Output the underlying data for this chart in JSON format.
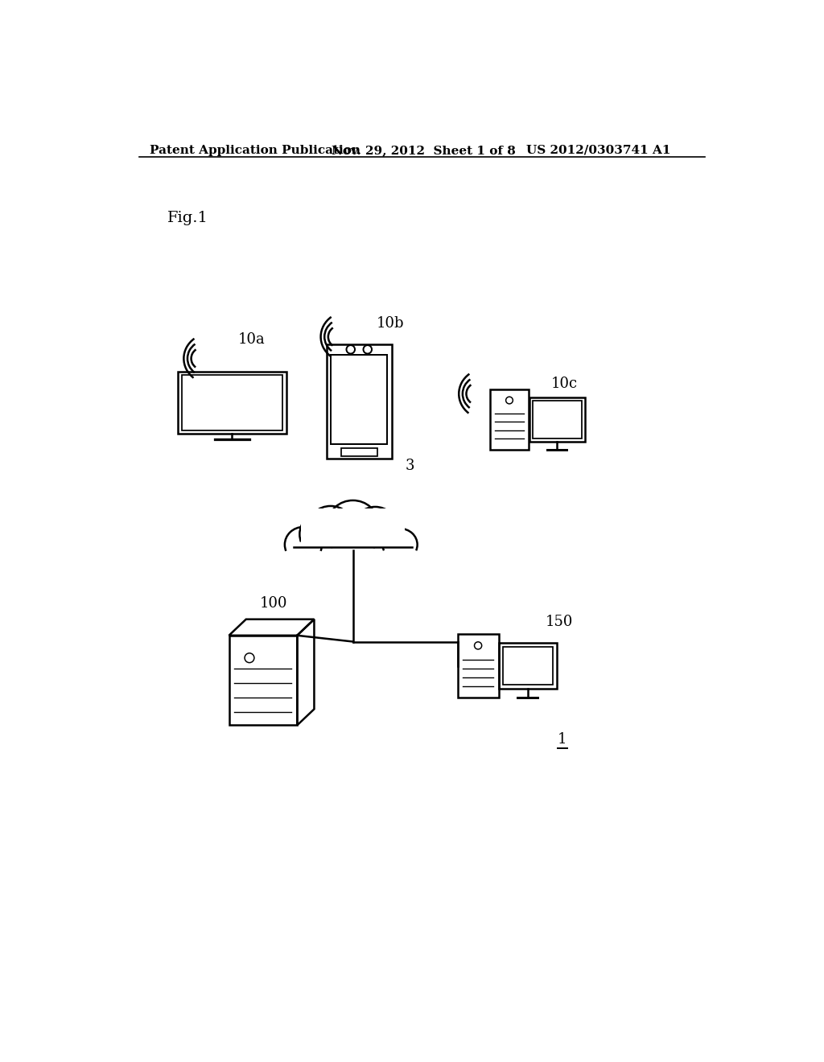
{
  "background_color": "#ffffff",
  "header_left": "Patent Application Publication",
  "header_mid": "Nov. 29, 2012  Sheet 1 of 8",
  "header_right": "US 2012/0303741 A1",
  "fig_label": "Fig.1",
  "label_1": "1",
  "label_3": "3",
  "label_10a": "10a",
  "label_10b": "10b",
  "label_10c": "10c",
  "label_100": "100",
  "label_150": "150",
  "line_color": "#000000"
}
